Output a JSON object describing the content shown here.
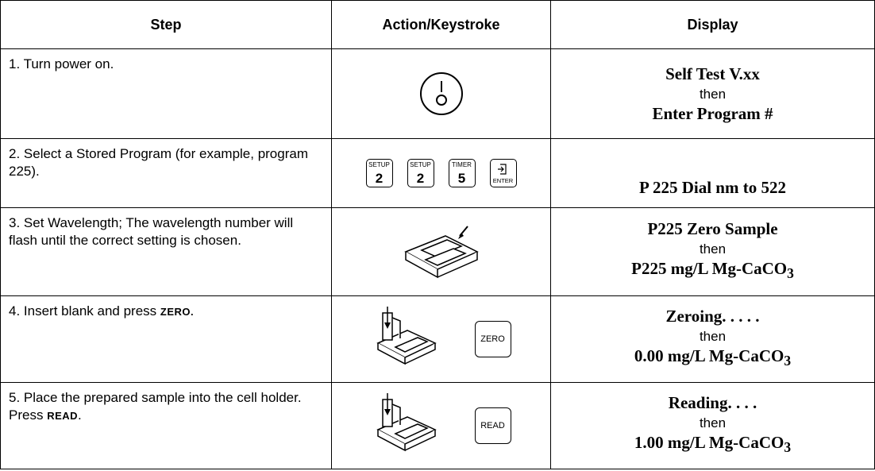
{
  "table": {
    "header": [
      "Step",
      "Action/Keystroke",
      "Display"
    ],
    "rows": [
      {
        "step": [
          "1. Turn power on."
        ],
        "display": {
          "line1": "Self Test V.xx",
          "then": "then",
          "line2": {
            "text": "Enter Program #"
          }
        }
      },
      {
        "step": [
          "2. Select a Stored Program (for example, program 225)."
        ],
        "keys": [
          {
            "top": "SETUP",
            "main": "2"
          },
          {
            "top": "SETUP",
            "main": "2"
          },
          {
            "top": "TIMER",
            "main": "5"
          },
          {
            "bottom": "ENTER"
          }
        ],
        "display": {
          "line2": {
            "text": "P 225 Dial nm to 522"
          }
        }
      },
      {
        "step": [
          "3. Set Wavelength; The wavelength number will flash until the correct setting is chosen."
        ],
        "display": {
          "line1": "P225 Zero Sample",
          "then": "then",
          "line2": {
            "text": "P225 mg/L Mg-CaCO",
            "sub": "3"
          }
        }
      },
      {
        "step": [
          "4. Insert blank and press ",
          "ZERO."
        ],
        "key": "ZERO",
        "display": {
          "line1": "Zeroing. . . . .",
          "then": "then",
          "line2": {
            "text": "0.00 mg/L Mg-CaCO",
            "sub": "3"
          }
        }
      },
      {
        "step": [
          "5. Place the prepared sample into the cell holder. Press ",
          "READ",
          "."
        ],
        "key": "READ",
        "display": {
          "line1": "Reading. . . .",
          "then": "then",
          "line2": {
            "text": "1.00 mg/L Mg-CaCO",
            "sub": "3"
          }
        }
      }
    ]
  }
}
